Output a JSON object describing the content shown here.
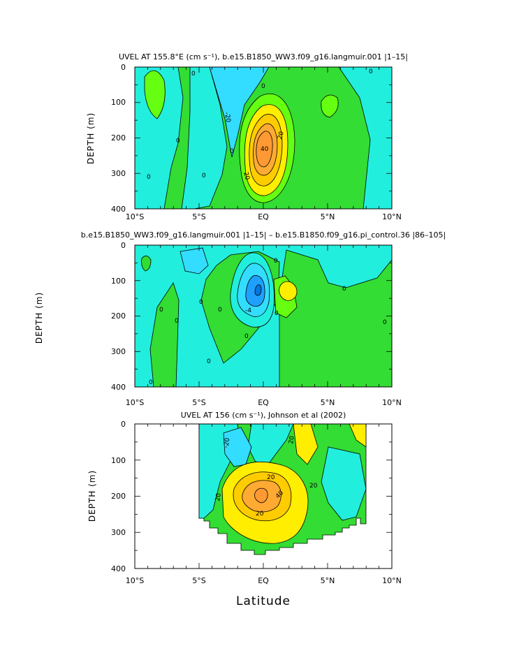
{
  "figure": {
    "x_axis_label": "Latitude",
    "colors": {
      "cyan_light": "#22eedd",
      "cyan_mid": "#33ddff",
      "blue": "#1fa0ff",
      "green": "#33dd33",
      "green_bright": "#66ff11",
      "yellow": "#ffee00",
      "yellow_dark": "#ffcc00",
      "orange": "#ffaa33",
      "orange_dark": "#ff9933",
      "line": "#000000"
    }
  },
  "chart_data": [
    {
      "type": "contour",
      "title": "UVEL AT 155.8°E (cm s⁻¹), b.e15.B1850_WW3.f09_g16.langmuir.001 |1–15|",
      "xlabel": "",
      "ylabel": "DEPTH (m)",
      "x_ticks": [
        "10°S",
        "5°S",
        "EQ",
        "5°N",
        "10°N"
      ],
      "x_range_deg": [
        -10,
        10
      ],
      "y_ticks": [
        "0",
        "100",
        "200",
        "300",
        "400"
      ],
      "y_range_m": [
        0,
        400
      ],
      "contour_interval": 10,
      "contour_labels": [
        "0",
        "0",
        "0",
        "0",
        "0",
        "0",
        "0",
        "-20",
        "20",
        "40",
        "20"
      ],
      "core_max_approx": 50,
      "core_location": {
        "lat": -0.3,
        "depth_m": 210
      }
    },
    {
      "type": "contour",
      "title": "b.e15.B1850_WW3.f09_g16.langmuir.001 |1–15| – b.e15.B1850.f09_g16.pi_control.36 |86–105|",
      "xlabel": "",
      "ylabel": "DEPTH (m)",
      "x_ticks": [
        "10°S",
        "5°S",
        "EQ",
        "5°N",
        "10°N"
      ],
      "x_range_deg": [
        -10,
        10
      ],
      "y_ticks": [
        "0",
        "100",
        "200",
        "300",
        "400"
      ],
      "y_range_m": [
        0,
        400
      ],
      "contour_interval": 2,
      "contour_labels": [
        "0",
        "0",
        "0",
        "0",
        "0",
        "0",
        "0",
        "0",
        "0",
        "0",
        "0",
        "-4"
      ],
      "core_min_approx": -8,
      "core_location": {
        "lat": -0.4,
        "depth_m": 130
      }
    },
    {
      "type": "contour",
      "title": "UVEL AT 156 (cm s⁻¹), Johnson et al (2002)",
      "xlabel": "Latitude",
      "ylabel": "DEPTH (m)",
      "x_ticks": [
        "10°S",
        "5°S",
        "EQ",
        "5°N",
        "10°N"
      ],
      "x_range_deg": [
        -10,
        10
      ],
      "y_ticks": [
        "0",
        "100",
        "200",
        "300",
        "400"
      ],
      "y_range_m": [
        0,
        400
      ],
      "contour_interval": 10,
      "contour_labels": [
        "-20",
        "20",
        "20",
        "40",
        "20",
        "20",
        "20"
      ],
      "core_max_approx": 50,
      "core_location": {
        "lat": -0.3,
        "depth_m": 200
      },
      "data_coverage_deg": [
        -5,
        8
      ]
    }
  ]
}
